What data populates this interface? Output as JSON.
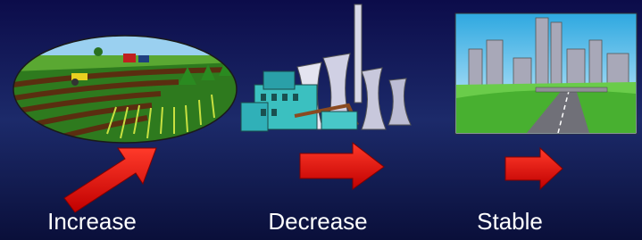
{
  "items": [
    {
      "label": "Increase"
    },
    {
      "label": "Decrease"
    },
    {
      "label": "Stable"
    }
  ]
}
